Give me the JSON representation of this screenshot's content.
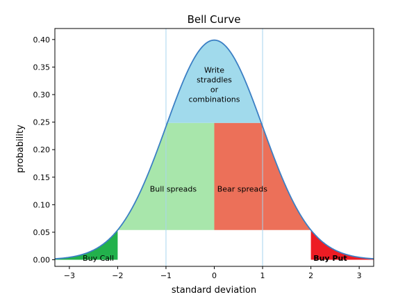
{
  "chart_data": {
    "type": "area",
    "title": "Bell Curve",
    "xlabel": "standard deviation",
    "ylabel": "probability",
    "xlim": [
      -3.3,
      3.3
    ],
    "ylim": [
      -0.012,
      0.42
    ],
    "x_ticks": [
      -3,
      -2,
      -1,
      0,
      1,
      2,
      3
    ],
    "y_ticks": [
      0.0,
      0.05,
      0.1,
      0.15,
      0.2,
      0.25,
      0.3,
      0.35,
      0.4
    ],
    "x_tick_labels": [
      "−3",
      "−2",
      "−1",
      "0",
      "1",
      "2",
      "3"
    ],
    "y_tick_labels": [
      "0.00",
      "0.05",
      "0.10",
      "0.15",
      "0.20",
      "0.25",
      "0.30",
      "0.35",
      "0.40"
    ],
    "curve": {
      "distribution": "standard normal",
      "mean": 0,
      "std": 1,
      "x_range": [
        -3.3,
        3.3
      ],
      "color": "#3b7fc4"
    },
    "vertical_lines": [
      -1,
      1
    ],
    "vline_color": "#a7d4ee",
    "regions": [
      {
        "name": "buy-call",
        "label": "Buy Call",
        "bold": false,
        "color": "#22b14c",
        "x_from": -3.3,
        "x_to": -2,
        "y_floor": 0,
        "y_cap": null
      },
      {
        "name": "buy-put",
        "label": "Buy Put",
        "bold": true,
        "color": "#ed1c24",
        "x_from": 2,
        "x_to": 3.3,
        "y_floor": 0,
        "y_cap": null
      },
      {
        "name": "bull-spreads",
        "label": "Bull spreads",
        "bold": false,
        "color": "#a8e6ab",
        "x_from": -2,
        "x_to": 0,
        "y_floor": 0.054,
        "y_cap": 0.2485
      },
      {
        "name": "bear-spreads",
        "label": "Bear spreads",
        "bold": false,
        "color": "#ec7059",
        "x_from": 0,
        "x_to": 2,
        "y_floor": 0.054,
        "y_cap": 0.2485
      },
      {
        "name": "write-straddles",
        "label": "Write\nstraddles\nor\ncombinations",
        "bold": false,
        "color": "#a1daec",
        "x_from": -1,
        "x_to": 1,
        "y_floor": 0.2485,
        "y_cap": null
      }
    ],
    "grid": false,
    "legend": "none"
  }
}
